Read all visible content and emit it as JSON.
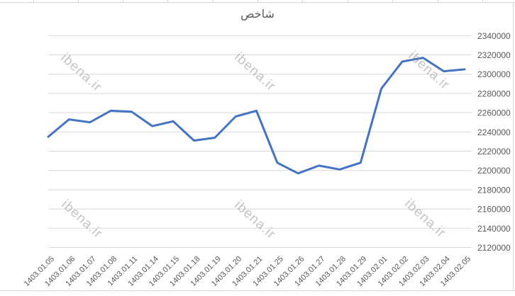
{
  "chart": {
    "title": "شاخص",
    "watermark": {
      "text": "ibena.ir"
    },
    "colors": {
      "line": "#4472C4",
      "grid": "#d9d9d9",
      "axis_text": "#595959",
      "watermark": "#949494",
      "sheet_grid": "#d6d6d6",
      "background": "#ffffff"
    }
  },
  "chart_data": {
    "type": "line",
    "title": "شاخص",
    "categories": [
      "1403.01.05",
      "1403.01.06",
      "1403.01.07",
      "1403.01.08",
      "1403.01.11",
      "1403.01.14",
      "1403.01.15",
      "1403.01.18",
      "1403.01.19",
      "1403.01.20",
      "1403.01.21",
      "1403.01.25",
      "1403.01.26",
      "1403.01.27",
      "1403.01.28",
      "1403.01.29",
      "1403.02.01",
      "1403.02.02",
      "1403.02.03",
      "1403.02.04",
      "1403.02.05"
    ],
    "values": [
      2235000,
      2253000,
      2250000,
      2262000,
      2261000,
      2246000,
      2251000,
      2231000,
      2234000,
      2256000,
      2262000,
      2208000,
      2197000,
      2205000,
      2201000,
      2208000,
      2285000,
      2313000,
      2317000,
      2303000,
      2305000
    ],
    "xlabel": "",
    "ylabel": "",
    "ylim": [
      2120000,
      2340000
    ],
    "ytick_step": 20000,
    "ytick_labels": [
      "2340000",
      "2320000",
      "2300000",
      "2280000",
      "2260000",
      "2240000",
      "2220000",
      "2200000",
      "2180000",
      "2160000",
      "2140000",
      "2120000"
    ],
    "grid": true,
    "legend": false,
    "y_axis_side": "right",
    "x_label_rotation": -45,
    "line_color": "#4472C4"
  }
}
